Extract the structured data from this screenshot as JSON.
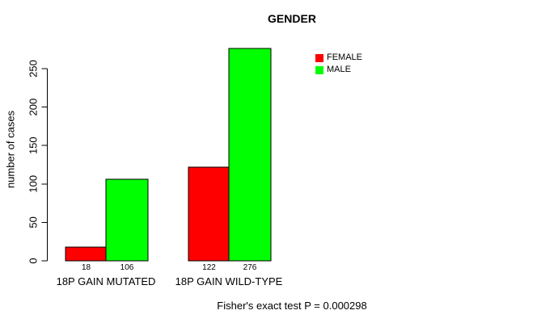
{
  "chart_data": {
    "type": "bar",
    "title": "GENDER",
    "ylabel": "number of cases",
    "xlabel": "",
    "categories": [
      "18P GAIN MUTATED",
      "18P GAIN WILD-TYPE"
    ],
    "series": [
      {
        "name": "FEMALE",
        "color": "#ff0000",
        "values": [
          18,
          122
        ]
      },
      {
        "name": "MALE",
        "color": "#00ff00",
        "values": [
          106,
          276
        ]
      }
    ],
    "yticks": [
      0,
      50,
      100,
      150,
      200,
      250
    ],
    "ylim": [
      0,
      250
    ],
    "grid": false,
    "legend_position": "top-right",
    "bar_value_labels_shown": true,
    "annotation": "Fisher's exact test P = 0.000298"
  },
  "colors": {
    "background": "#ffffff",
    "text": "#000000",
    "bar_outline": "#000000",
    "female": "#ff0000",
    "male": "#00ff00"
  }
}
